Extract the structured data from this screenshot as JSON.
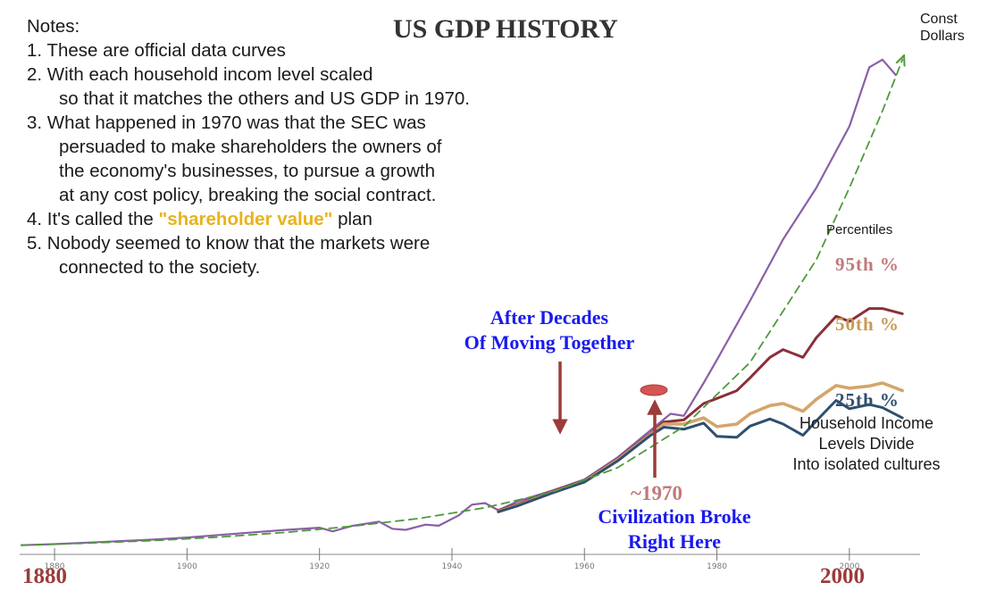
{
  "title": "US GDP HISTORY",
  "notes": {
    "heading": "Notes:",
    "n1": "1. These are official data curves",
    "n2a": "2. With each household incom level scaled",
    "n2b": "so that it matches the others and US GDP in 1970.",
    "n3a": "3. What happened in 1970 was that the SEC was",
    "n3b": "persuaded to make shareholders the owners of",
    "n3c": "the economy's businesses, to pursue a growth",
    "n3d": "at any cost policy, breaking the social contract.",
    "n4_pre": "4. It's called the ",
    "n4_hl": "\"shareholder value\"",
    "n4_post": " plan",
    "n5a": "5. Nobody seemed to know that the markets were",
    "n5b": "connected to the society."
  },
  "annotations": {
    "after1": "After Decades",
    "after2": "Of Moving Together",
    "year1970": "~1970",
    "broke1": "Civilization Broke",
    "broke2": "Right Here",
    "const1": "Const",
    "const2": "Dollars",
    "percentiles": "Percentiles",
    "p95": "95th %",
    "p50": "50th %",
    "p25": "25th %",
    "hh1": "Household Income",
    "hh2": "Levels Divide",
    "hh3": "Into isolated cultures",
    "start_year": "1880",
    "end_year": "2000"
  },
  "colors": {
    "gdp": "#8a5fa8",
    "trend": "#4f9a3a",
    "p95": "#8b2f3a",
    "p50": "#d4a56a",
    "p25": "#2f4f6f",
    "arrow": "#9c3b3b",
    "marker": "#cc4444"
  },
  "chart_data": {
    "type": "line",
    "title": "US GDP HISTORY",
    "xlabel": "",
    "ylabel": "",
    "xlim": [
      1875,
      2010
    ],
    "x_ticks": [
      1880,
      1900,
      1920,
      1940,
      1960,
      1980,
      2000
    ],
    "grid": false,
    "series": [
      {
        "name": "Const Dollars",
        "key": "gdp",
        "x": [
          1875,
          1880,
          1885,
          1890,
          1895,
          1900,
          1905,
          1910,
          1915,
          1920,
          1922,
          1925,
          1929,
          1931,
          1933,
          1936,
          1938,
          1941,
          1943,
          1945,
          1947,
          1950,
          1955,
          1960,
          1965,
          1970,
          1973,
          1975,
          1978,
          1980,
          1985,
          1990,
          1995,
          2000,
          2003,
          2005,
          2007
        ],
        "y": [
          0.4,
          0.6,
          0.9,
          1.2,
          1.5,
          1.9,
          2.4,
          2.9,
          3.4,
          3.8,
          3.1,
          4.2,
          5.0,
          3.6,
          3.4,
          4.4,
          4.2,
          6.2,
          8.3,
          8.6,
          7.2,
          9.0,
          11.0,
          13.2,
          17.5,
          22.8,
          26.0,
          25.6,
          32.0,
          36.5,
          48.0,
          60.0,
          70.0,
          82.0,
          93.5,
          95.0,
          92.0
        ]
      },
      {
        "name": "",
        "key": "trend",
        "x": [
          1875,
          1885,
          1895,
          1905,
          1915,
          1925,
          1935,
          1945,
          1955,
          1965,
          1975,
          1985,
          1995,
          2000,
          2005,
          2008
        ],
        "y": [
          0.4,
          0.8,
          1.3,
          2.0,
          2.9,
          4.1,
          5.6,
          7.7,
          10.7,
          15.5,
          23.5,
          36.0,
          56.0,
          70.0,
          85.0,
          95.0
        ]
      },
      {
        "name": "95th %",
        "key": "p95",
        "x": [
          1947,
          1950,
          1955,
          1960,
          1965,
          1970,
          1972,
          1975,
          1978,
          1980,
          1983,
          1985,
          1988,
          1990,
          1993,
          1995,
          1998,
          2000,
          2003,
          2005,
          2008
        ],
        "y": [
          7.2,
          8.4,
          10.8,
          13.0,
          17.2,
          22.2,
          24.4,
          24.8,
          28.0,
          29.0,
          30.5,
          33.0,
          37.0,
          38.5,
          37.0,
          40.8,
          45.0,
          44.0,
          46.5,
          46.5,
          45.5
        ]
      },
      {
        "name": "50th %",
        "key": "p50",
        "x": [
          1947,
          1950,
          1955,
          1960,
          1965,
          1970,
          1972,
          1975,
          1978,
          1980,
          1983,
          1985,
          1988,
          1990,
          1993,
          1995,
          1998,
          2000,
          2003,
          2005,
          2008
        ],
        "y": [
          7.0,
          8.2,
          10.6,
          12.8,
          17.0,
          22.0,
          24.0,
          24.0,
          25.2,
          23.5,
          24.0,
          26.0,
          27.6,
          28.0,
          26.5,
          28.8,
          31.5,
          31.0,
          31.4,
          32.0,
          30.5
        ]
      },
      {
        "name": "25th %",
        "key": "p25",
        "x": [
          1947,
          1950,
          1955,
          1960,
          1965,
          1970,
          1972,
          1975,
          1978,
          1980,
          1983,
          1985,
          1988,
          1990,
          1993,
          1995,
          1998,
          2000,
          2003,
          2005,
          2008
        ],
        "y": [
          6.9,
          8.1,
          10.5,
          12.7,
          16.8,
          21.8,
          23.4,
          23.0,
          24.2,
          21.6,
          21.4,
          23.6,
          25.0,
          24.0,
          21.8,
          24.6,
          28.6,
          27.0,
          27.8,
          27.2,
          25.2
        ]
      }
    ]
  }
}
